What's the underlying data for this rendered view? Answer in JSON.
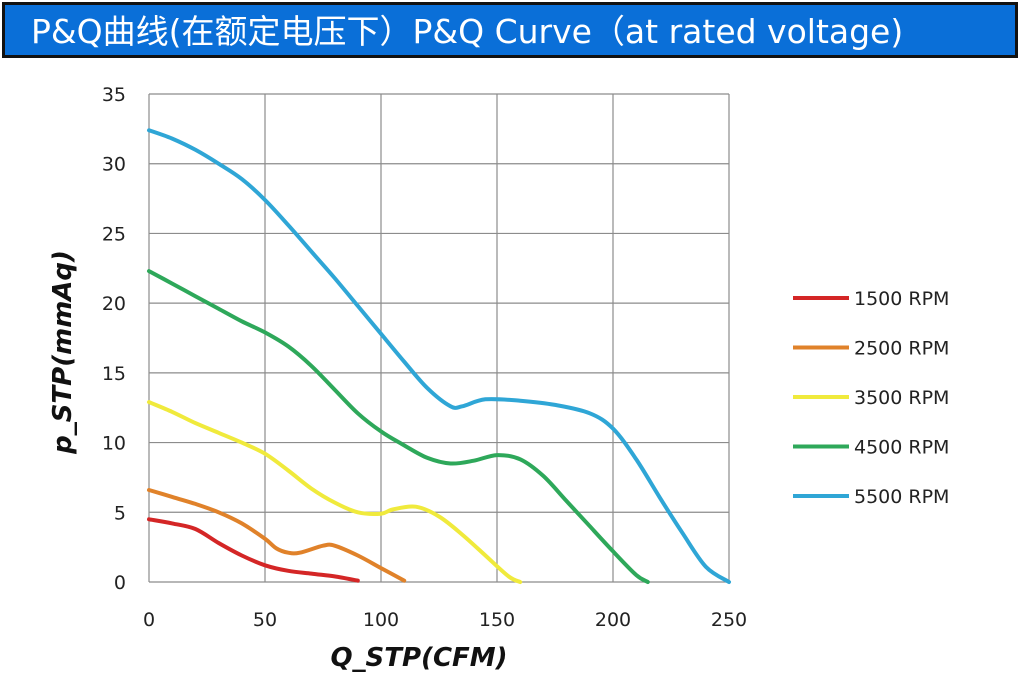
{
  "header": {
    "title": "P&Q曲线(在额定电压下）P&Q Curve（at rated voltage)"
  },
  "colors": {
    "banner": "#0a6fd8",
    "grid": "#8c8c8c"
  },
  "chart_data": {
    "type": "line",
    "title": "",
    "xlabel": "Q_STP(CFM)",
    "ylabel": "p_STP(mmAq)",
    "xlim": [
      0,
      250
    ],
    "ylim": [
      0,
      35
    ],
    "xticks": [
      0,
      50,
      100,
      150,
      200,
      250
    ],
    "yticks": [
      0,
      5,
      10,
      15,
      20,
      25,
      30,
      35
    ],
    "grid": true,
    "legend_position": "right",
    "series": [
      {
        "name": "1500 RPM",
        "color": "#d42626",
        "points": [
          [
            0,
            4.5
          ],
          [
            10,
            4.2
          ],
          [
            20,
            3.8
          ],
          [
            30,
            2.8
          ],
          [
            40,
            1.9
          ],
          [
            50,
            1.2
          ],
          [
            60,
            0.8
          ],
          [
            70,
            0.6
          ],
          [
            80,
            0.4
          ],
          [
            90,
            0.1
          ]
        ]
      },
      {
        "name": "2500 RPM",
        "color": "#e0822a",
        "points": [
          [
            0,
            6.6
          ],
          [
            10,
            6.1
          ],
          [
            20,
            5.6
          ],
          [
            30,
            5.0
          ],
          [
            40,
            4.2
          ],
          [
            50,
            3.1
          ],
          [
            55,
            2.4
          ],
          [
            60,
            2.1
          ],
          [
            65,
            2.1
          ],
          [
            75,
            2.6
          ],
          [
            80,
            2.6
          ],
          [
            90,
            1.9
          ],
          [
            100,
            1.0
          ],
          [
            110,
            0.1
          ]
        ]
      },
      {
        "name": "3500 RPM",
        "color": "#f0ea3c",
        "points": [
          [
            0,
            12.9
          ],
          [
            10,
            12.2
          ],
          [
            20,
            11.4
          ],
          [
            30,
            10.7
          ],
          [
            40,
            10.0
          ],
          [
            50,
            9.2
          ],
          [
            60,
            8.0
          ],
          [
            70,
            6.7
          ],
          [
            80,
            5.7
          ],
          [
            90,
            5.0
          ],
          [
            100,
            4.9
          ],
          [
            105,
            5.2
          ],
          [
            115,
            5.4
          ],
          [
            125,
            4.7
          ],
          [
            135,
            3.4
          ],
          [
            145,
            1.9
          ],
          [
            155,
            0.4
          ],
          [
            160,
            0.0
          ]
        ]
      },
      {
        "name": "4500 RPM",
        "color": "#2ea85a",
        "points": [
          [
            0,
            22.3
          ],
          [
            10,
            21.4
          ],
          [
            20,
            20.5
          ],
          [
            30,
            19.6
          ],
          [
            40,
            18.7
          ],
          [
            50,
            17.9
          ],
          [
            60,
            16.9
          ],
          [
            70,
            15.5
          ],
          [
            80,
            13.8
          ],
          [
            90,
            12.1
          ],
          [
            100,
            10.8
          ],
          [
            110,
            9.8
          ],
          [
            120,
            8.9
          ],
          [
            130,
            8.5
          ],
          [
            140,
            8.7
          ],
          [
            150,
            9.1
          ],
          [
            160,
            8.8
          ],
          [
            170,
            7.6
          ],
          [
            180,
            5.8
          ],
          [
            190,
            4.0
          ],
          [
            200,
            2.2
          ],
          [
            210,
            0.5
          ],
          [
            215,
            0.0
          ]
        ]
      },
      {
        "name": "5500 RPM",
        "color": "#2fa6d6",
        "points": [
          [
            0,
            32.4
          ],
          [
            10,
            31.8
          ],
          [
            20,
            31.0
          ],
          [
            30,
            30.0
          ],
          [
            40,
            28.9
          ],
          [
            50,
            27.4
          ],
          [
            60,
            25.6
          ],
          [
            70,
            23.7
          ],
          [
            80,
            21.8
          ],
          [
            90,
            19.8
          ],
          [
            100,
            17.8
          ],
          [
            110,
            15.8
          ],
          [
            120,
            13.9
          ],
          [
            130,
            12.6
          ],
          [
            135,
            12.6
          ],
          [
            145,
            13.1
          ],
          [
            160,
            13.0
          ],
          [
            175,
            12.7
          ],
          [
            190,
            12.1
          ],
          [
            200,
            11.0
          ],
          [
            210,
            8.8
          ],
          [
            220,
            6.1
          ],
          [
            230,
            3.5
          ],
          [
            240,
            1.1
          ],
          [
            250,
            0.0
          ]
        ]
      }
    ]
  }
}
